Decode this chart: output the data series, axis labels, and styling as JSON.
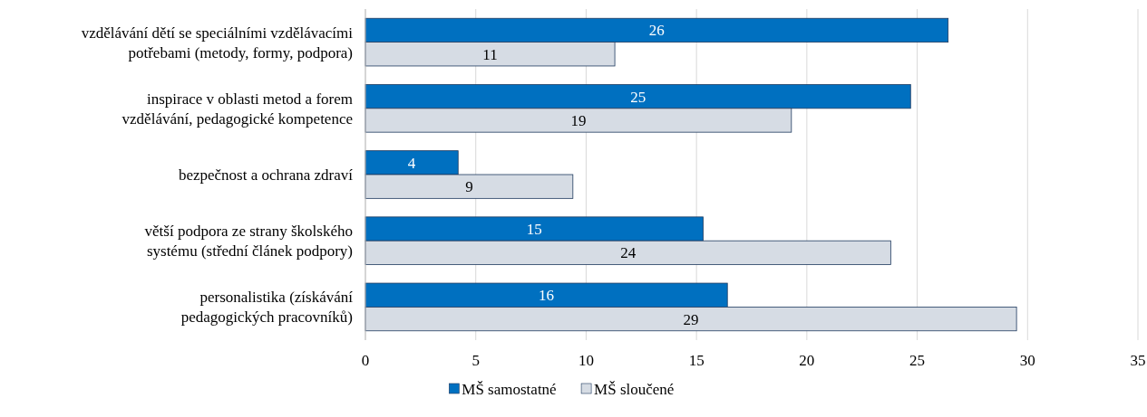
{
  "chart_data": {
    "type": "bar",
    "orientation": "horizontal",
    "categories": [
      "vzdělávání dětí se speciálními vzdělávacími\npotřebami (metody, formy, podpora)",
      "inspirace v oblasti metod a forem\nvzdělávání, pedagogické kompetence",
      "bezpečnost a ochrana zdraví",
      "větší podpora ze strany školského\nsystému (střední článek podpory)",
      "personalistika (získávání\npedagogických pracovníků)"
    ],
    "series": [
      {
        "name": "MŠ samostatné",
        "color": "#0070c0",
        "values": [
          26.4,
          24.7,
          4.2,
          15.3,
          16.4
        ],
        "value_labels": [
          "26",
          "25",
          "4",
          "15",
          "16"
        ]
      },
      {
        "name": "MŠ sloučené",
        "color": "#d6dce4",
        "values": [
          11.3,
          19.3,
          9.4,
          23.8,
          29.5
        ],
        "value_labels": [
          "11",
          "19",
          "9",
          "24",
          "29"
        ]
      }
    ],
    "xlim": [
      0,
      35
    ],
    "xticks": [
      0,
      5,
      10,
      15,
      20,
      25,
      30,
      35
    ],
    "grid": "x",
    "legend": "bottom"
  }
}
